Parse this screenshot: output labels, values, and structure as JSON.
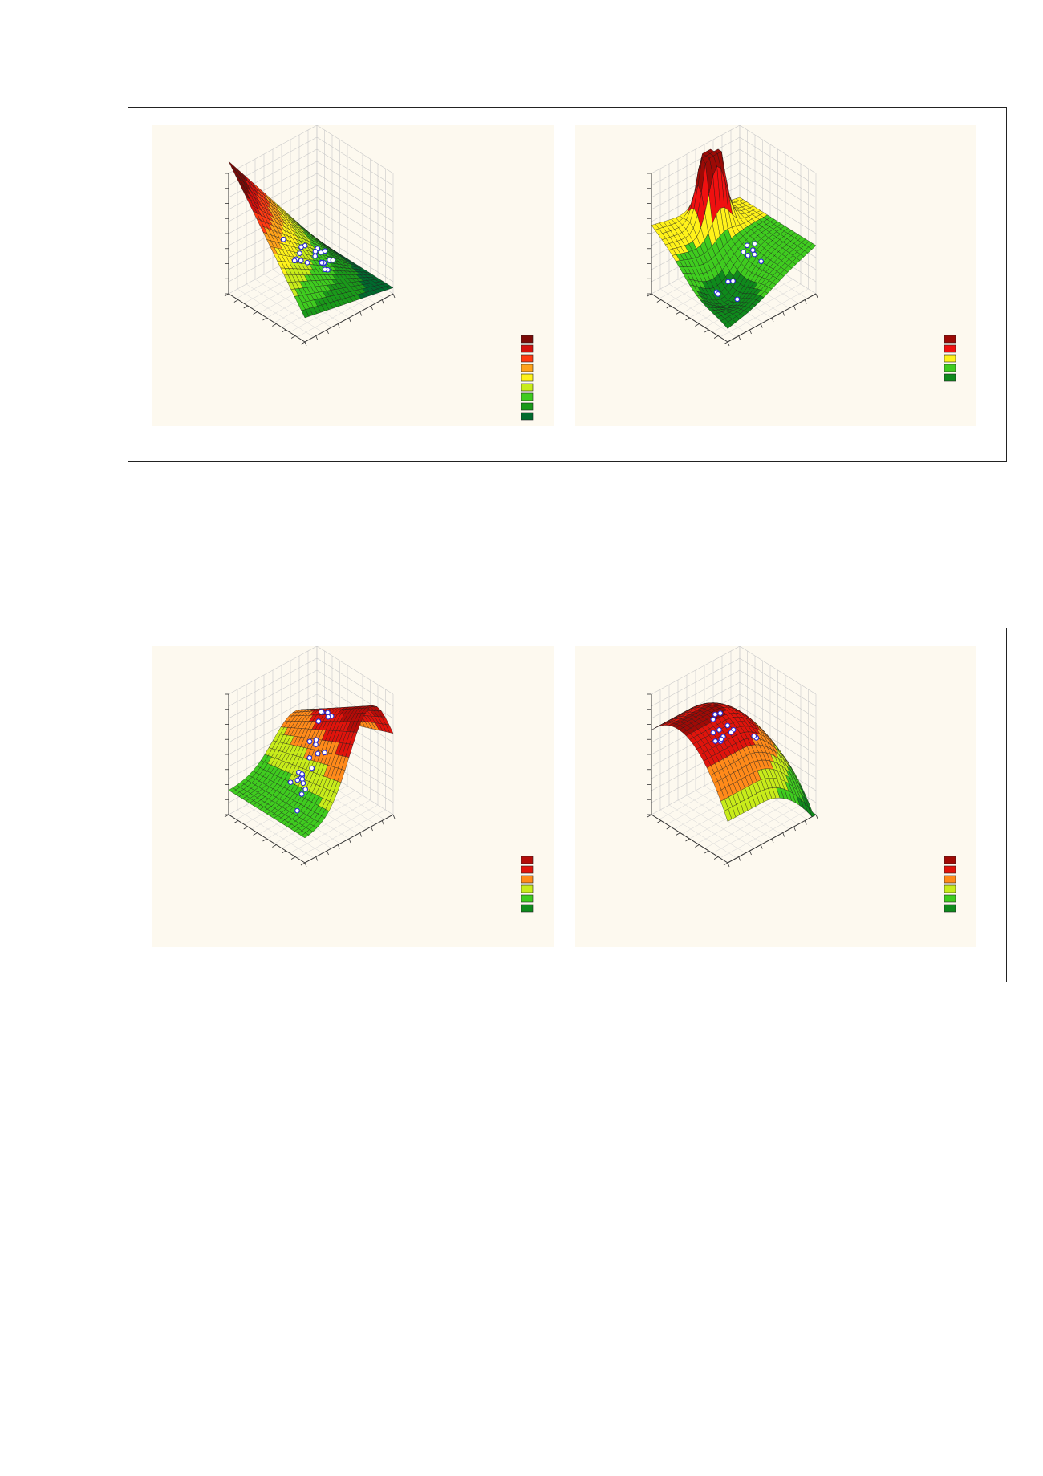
{
  "figures": [
    {
      "panels": [
        {
          "surface": "plane-slope",
          "colors": [
            "#006b2e",
            "#1a9a1a",
            "#3fcc1f",
            "#c8ec1a",
            "#fff21a",
            "#ffa21a",
            "#ff3a12",
            "#d4100c",
            "#7c0a06"
          ],
          "points": 22
        },
        {
          "surface": "peak-valley",
          "colors": [
            "#0f8a1c",
            "#3fcc1f",
            "#fff21a",
            "#f01010",
            "#9c0a06"
          ],
          "points": 12
        }
      ]
    },
    {
      "panels": [
        {
          "surface": "saddle-hill",
          "colors": [
            "#0f8a1c",
            "#3fcc1f",
            "#c8ec1a",
            "#ff8a1a",
            "#e0140c",
            "#b40c08"
          ],
          "points": 24
        },
        {
          "surface": "dome-drop",
          "colors": [
            "#0f8a1c",
            "#3fcc1f",
            "#c8ec1a",
            "#ff8a1a",
            "#e0140c",
            "#a00a06"
          ],
          "points": 14
        }
      ]
    }
  ]
}
